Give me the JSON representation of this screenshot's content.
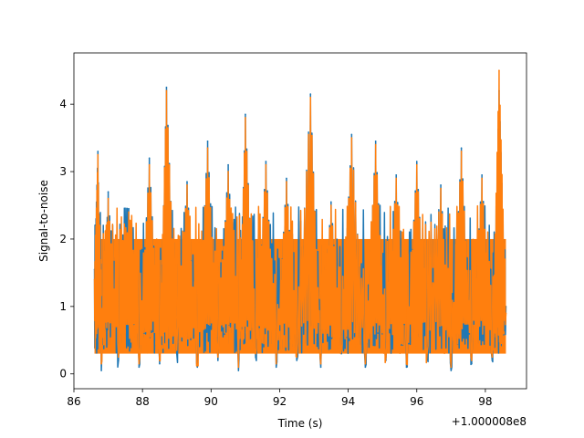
{
  "chart_data": {
    "type": "line",
    "xlabel": "Time (s)",
    "ylabel": "Signal-to-noise",
    "x_offset_label": "+1.000008e8",
    "xlim": [
      86.0,
      99.2
    ],
    "ylim": [
      -0.22,
      4.76
    ],
    "x_ticks": [
      86,
      88,
      90,
      92,
      94,
      96,
      98
    ],
    "x_tick_labels": [
      "86",
      "88",
      "90",
      "92",
      "94",
      "96",
      "98"
    ],
    "y_ticks": [
      0,
      1,
      2,
      3,
      4
    ],
    "y_tick_labels": [
      "0",
      "1",
      "2",
      "3",
      "4"
    ],
    "grid": false,
    "legend": "none",
    "series": [
      {
        "color": "#1f77b4",
        "x": [
          86.6,
          86.7,
          86.8,
          87.0,
          87.3,
          87.6,
          87.9,
          88.2,
          88.5,
          88.7,
          89.0,
          89.3,
          89.6,
          89.9,
          90.2,
          90.5,
          90.8,
          91.0,
          91.3,
          91.6,
          91.9,
          92.2,
          92.5,
          92.9,
          93.2,
          93.5,
          93.8,
          94.1,
          94.5,
          94.8,
          95.1,
          95.4,
          95.7,
          96.0,
          96.3,
          96.7,
          97.0,
          97.3,
          97.6,
          97.9,
          98.2,
          98.4,
          98.6
        ],
        "y": [
          1.55,
          3.3,
          0.05,
          2.7,
          0.2,
          2.45,
          0.1,
          3.2,
          0.15,
          4.25,
          0.3,
          2.85,
          0.1,
          3.45,
          0.2,
          3.1,
          0.05,
          3.85,
          0.25,
          3.15,
          0.1,
          2.9,
          0.2,
          4.15,
          0.1,
          2.55,
          0.3,
          3.55,
          0.1,
          3.45,
          0.2,
          2.95,
          0.1,
          3.15,
          0.25,
          2.8,
          0.05,
          3.35,
          0.15,
          2.95,
          0.2,
          4.2,
          1.0
        ]
      },
      {
        "color": "#ff7f0e",
        "x": [
          86.6,
          86.7,
          86.8,
          87.0,
          87.3,
          87.6,
          87.9,
          88.2,
          88.5,
          88.7,
          89.0,
          89.3,
          89.6,
          89.9,
          90.2,
          90.5,
          90.8,
          91.0,
          91.3,
          91.6,
          91.9,
          92.2,
          92.5,
          92.9,
          93.2,
          93.5,
          93.8,
          94.1,
          94.5,
          94.8,
          95.1,
          95.4,
          95.7,
          96.0,
          96.3,
          96.7,
          97.0,
          97.3,
          97.6,
          97.9,
          98.2,
          98.4,
          98.6
        ],
        "y": [
          1.4,
          3.25,
          0.15,
          2.6,
          0.25,
          2.4,
          0.15,
          3.1,
          0.2,
          4.2,
          0.35,
          2.8,
          0.15,
          3.35,
          0.25,
          3.0,
          0.1,
          3.8,
          0.3,
          3.1,
          0.15,
          2.85,
          0.25,
          4.1,
          0.15,
          2.5,
          0.35,
          3.5,
          0.15,
          3.4,
          0.25,
          2.9,
          0.15,
          3.1,
          0.3,
          2.75,
          0.1,
          3.3,
          0.2,
          2.9,
          0.25,
          4.5,
          0.9
        ]
      }
    ],
    "filled_band": {
      "x_start": 86.6,
      "x_end": 98.6,
      "y_low": 0.3,
      "y_high": 2.0
    }
  }
}
